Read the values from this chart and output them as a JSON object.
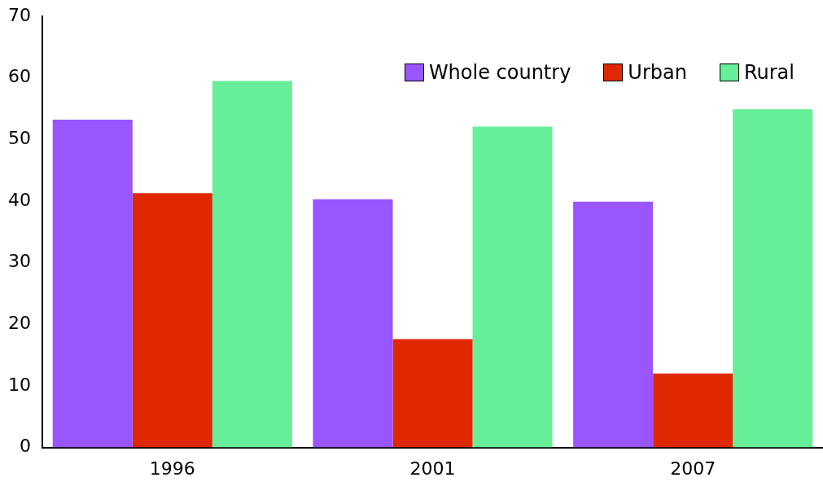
{
  "chart_data": {
    "type": "bar",
    "categories": [
      "1996",
      "2001",
      "2007"
    ],
    "series": [
      {
        "name": "Whole country",
        "color": "#9955ff",
        "values": [
          53.2,
          40.3,
          39.9
        ]
      },
      {
        "name": "Urban",
        "color": "#e02800",
        "values": [
          41.3,
          17.6,
          12.0
        ]
      },
      {
        "name": "Rural",
        "color": "#66ee99",
        "values": [
          59.5,
          52.1,
          54.9
        ]
      }
    ],
    "ylim": [
      0,
      70
    ],
    "yticks": [
      0,
      10,
      20,
      30,
      40,
      50,
      60,
      70
    ],
    "grid": false,
    "legend": "top right"
  }
}
